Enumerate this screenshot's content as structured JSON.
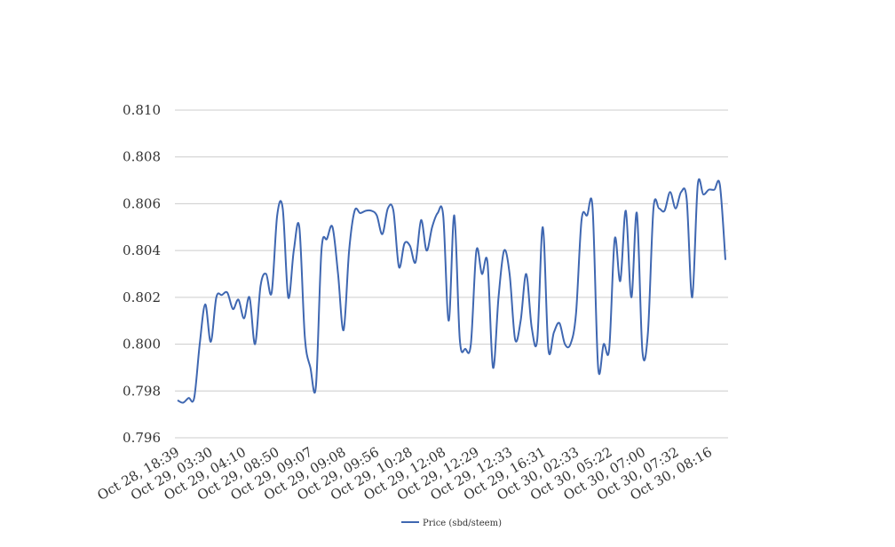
{
  "chart_data": {
    "type": "line",
    "title": "",
    "xlabel": "",
    "ylabel": "",
    "ylim": [
      0.796,
      0.81
    ],
    "yticks": [
      "0.796",
      "0.798",
      "0.800",
      "0.802",
      "0.804",
      "0.806",
      "0.808",
      "0.810"
    ],
    "xticks": [
      "Oct 28, 18:39",
      "Oct 29, 03:30",
      "Oct 29, 04:10",
      "Oct 29, 08:50",
      "Oct 29, 09:07",
      "Oct 29, 09:08",
      "Oct 29, 09:56",
      "Oct 29, 10:28",
      "Oct 29, 12:08",
      "Oct 29, 12:29",
      "Oct 29, 12:33",
      "Oct 29, 16:31",
      "Oct 30, 02:33",
      "Oct 30, 05:22",
      "Oct 30, 07:00",
      "Oct 30, 07:32",
      "Oct 30, 08:16"
    ],
    "grid": true,
    "legend_position": "bottom",
    "series": [
      {
        "name": "Price (sbd/steem)",
        "color": "#3f67b1",
        "values": [
          0.7976,
          0.7975,
          0.7977,
          0.7977,
          0.8,
          0.8017,
          0.8001,
          0.802,
          0.8021,
          0.8022,
          0.8015,
          0.8019,
          0.8011,
          0.802,
          0.8,
          0.8025,
          0.803,
          0.8022,
          0.8055,
          0.8058,
          0.802,
          0.804,
          0.805,
          0.8003,
          0.799,
          0.7982,
          0.804,
          0.8045,
          0.805,
          0.803,
          0.8006,
          0.804,
          0.8057,
          0.8056,
          0.8057,
          0.8057,
          0.8055,
          0.8047,
          0.8058,
          0.8057,
          0.8033,
          0.8043,
          0.8042,
          0.8035,
          0.8053,
          0.804,
          0.805,
          0.8056,
          0.8055,
          0.801,
          0.8055,
          0.8002,
          0.7998,
          0.8,
          0.804,
          0.803,
          0.8035,
          0.799,
          0.802,
          0.804,
          0.803,
          0.8002,
          0.801,
          0.803,
          0.8007,
          0.8002,
          0.805,
          0.7998,
          0.8005,
          0.8009,
          0.8,
          0.8,
          0.8013,
          0.8053,
          0.8055,
          0.8058,
          0.799,
          0.8,
          0.7998,
          0.8045,
          0.8027,
          0.8057,
          0.802,
          0.8056,
          0.7997,
          0.8005,
          0.8058,
          0.8058,
          0.8057,
          0.8065,
          0.8058,
          0.8065,
          0.8062,
          0.802,
          0.8068,
          0.8064,
          0.8066,
          0.8066,
          0.8068,
          0.8036
        ]
      }
    ]
  }
}
